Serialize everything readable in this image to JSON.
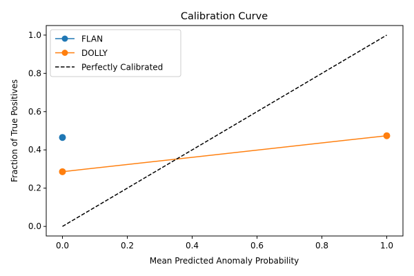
{
  "chart_data": {
    "type": "line",
    "title": "Calibration Curve",
    "xlabel": "Mean Predicted Anomaly Probability",
    "ylabel": "Fraction of True Positives",
    "xlim": [
      -0.05,
      1.05
    ],
    "ylim": [
      -0.05,
      1.05
    ],
    "xticks": [
      "0.0",
      "0.2",
      "0.4",
      "0.6",
      "0.8",
      "1.0"
    ],
    "yticks": [
      "0.0",
      "0.2",
      "0.4",
      "0.6",
      "0.8",
      "1.0"
    ],
    "grid": false,
    "legend_position": "top-left",
    "series": [
      {
        "name": "FLAN",
        "color": "#1f77b4",
        "marker": "circle",
        "linestyle": "solid",
        "x": [
          0.0
        ],
        "y": [
          0.465
        ]
      },
      {
        "name": "DOLLY",
        "color": "#ff7f0e",
        "marker": "circle",
        "linestyle": "solid",
        "x": [
          0.0,
          1.0
        ],
        "y": [
          0.286,
          0.474
        ]
      },
      {
        "name": "Perfectly Calibrated",
        "color": "#000000",
        "marker": "none",
        "linestyle": "dashed",
        "x": [
          0.0,
          1.0
        ],
        "y": [
          0.0,
          1.0
        ]
      }
    ]
  }
}
